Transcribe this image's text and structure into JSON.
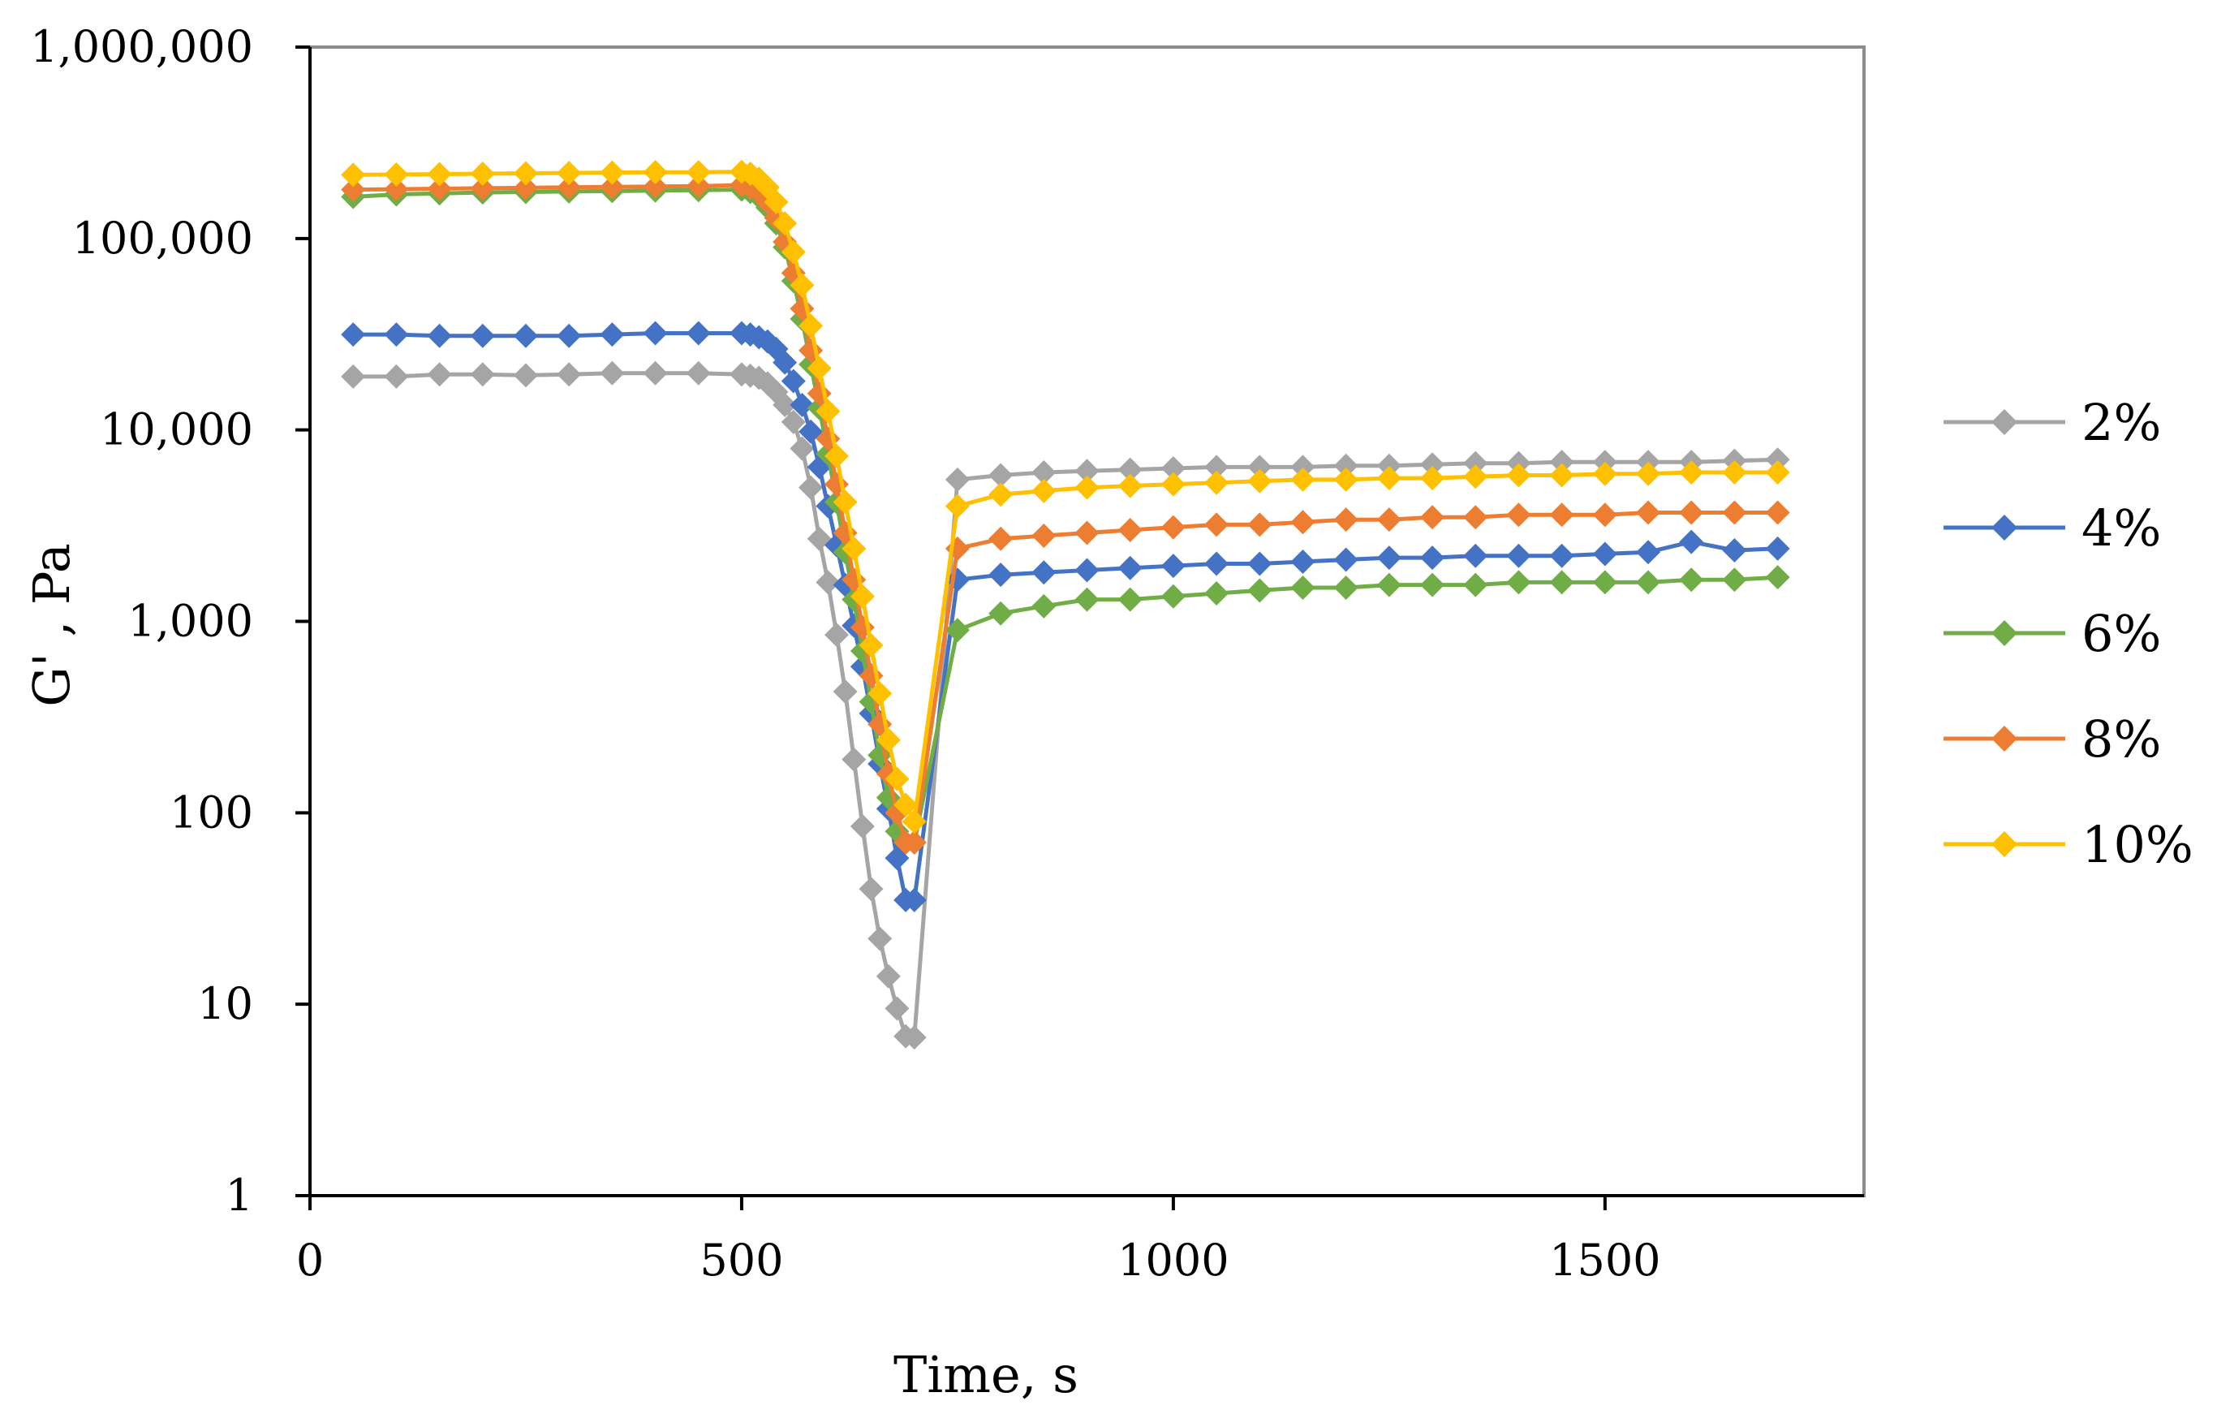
{
  "chart_data": {
    "type": "line",
    "title": "",
    "xlabel": "Time, s",
    "ylabel": "G' , Pa",
    "xlim": [
      0,
      1800
    ],
    "ylim": [
      1,
      1000000
    ],
    "yscale": "log",
    "grid": false,
    "legend_position": "right",
    "x_ticks": [
      0,
      500,
      1000,
      1500
    ],
    "x_tick_labels": [
      "0",
      "500",
      "1000",
      "1500"
    ],
    "y_ticks": [
      1,
      10,
      100,
      1000,
      10000,
      100000,
      1000000
    ],
    "y_tick_labels": [
      "1",
      "10",
      "100",
      "1,000",
      "10,000",
      "100,000",
      "1,000,000"
    ],
    "x": [
      50,
      100,
      150,
      200,
      250,
      300,
      350,
      400,
      450,
      500,
      510,
      520,
      530,
      540,
      550,
      560,
      570,
      580,
      590,
      600,
      610,
      620,
      630,
      640,
      650,
      660,
      670,
      680,
      690,
      700,
      750,
      800,
      850,
      900,
      950,
      1000,
      1050,
      1100,
      1150,
      1200,
      1250,
      1300,
      1350,
      1400,
      1450,
      1500,
      1550,
      1600,
      1650,
      1700
    ],
    "series": [
      {
        "name": "2%",
        "color": "#A5A5A5",
        "values": [
          19000,
          19000,
          19500,
          19500,
          19300,
          19500,
          19800,
          19800,
          19800,
          19500,
          19200,
          18700,
          17500,
          15800,
          13500,
          11000,
          8000,
          5000,
          2700,
          1600,
          850,
          430,
          190,
          85,
          40,
          22,
          14,
          9.5,
          6.8,
          6.7,
          5500,
          5800,
          6000,
          6100,
          6200,
          6300,
          6400,
          6400,
          6400,
          6500,
          6500,
          6600,
          6700,
          6700,
          6800,
          6800,
          6800,
          6800,
          6900,
          7000
        ]
      },
      {
        "name": "4%",
        "color": "#4472C4",
        "values": [
          31500,
          31500,
          31000,
          31000,
          31000,
          31000,
          31500,
          32000,
          32000,
          32000,
          31500,
          30500,
          29000,
          26500,
          22500,
          18000,
          13500,
          9800,
          6400,
          4000,
          2500,
          1550,
          950,
          580,
          330,
          180,
          105,
          58,
          35,
          35,
          1650,
          1750,
          1800,
          1850,
          1900,
          1950,
          2000,
          2000,
          2050,
          2100,
          2150,
          2150,
          2200,
          2200,
          2200,
          2250,
          2300,
          2600,
          2350,
          2400
        ]
      },
      {
        "name": "6%",
        "color": "#70AD47",
        "values": [
          165000,
          170000,
          172000,
          174000,
          175000,
          176000,
          177000,
          178000,
          179000,
          180000,
          175000,
          165000,
          145000,
          120000,
          90000,
          60000,
          38000,
          22000,
          13000,
          7500,
          4200,
          2300,
          1300,
          700,
          380,
          200,
          120,
          80,
          70,
          70,
          900,
          1100,
          1200,
          1300,
          1300,
          1350,
          1400,
          1450,
          1500,
          1500,
          1550,
          1550,
          1550,
          1600,
          1600,
          1600,
          1600,
          1650,
          1650,
          1700
        ]
      },
      {
        "name": "8%",
        "color": "#ED7D31",
        "values": [
          180000,
          181000,
          182000,
          183000,
          184000,
          185000,
          186000,
          187000,
          188000,
          190000,
          185000,
          175000,
          155000,
          128000,
          96000,
          66000,
          43000,
          26000,
          15500,
          9000,
          5200,
          2900,
          1650,
          930,
          520,
          290,
          160,
          100,
          70,
          70,
          2400,
          2700,
          2800,
          2900,
          3000,
          3100,
          3200,
          3200,
          3300,
          3400,
          3400,
          3500,
          3500,
          3600,
          3600,
          3600,
          3700,
          3700,
          3700,
          3700
        ]
      },
      {
        "name": "10%",
        "color": "#FFC000",
        "values": [
          215000,
          216000,
          217000,
          218000,
          219000,
          220000,
          221000,
          222000,
          222000,
          223000,
          218000,
          205000,
          185000,
          155000,
          120000,
          85000,
          57000,
          35000,
          21000,
          12500,
          7300,
          4200,
          2400,
          1350,
          750,
          420,
          240,
          150,
          110,
          90,
          4000,
          4600,
          4800,
          5000,
          5100,
          5200,
          5300,
          5400,
          5500,
          5500,
          5600,
          5600,
          5700,
          5800,
          5800,
          5900,
          5900,
          6000,
          6000,
          6000
        ]
      }
    ]
  }
}
